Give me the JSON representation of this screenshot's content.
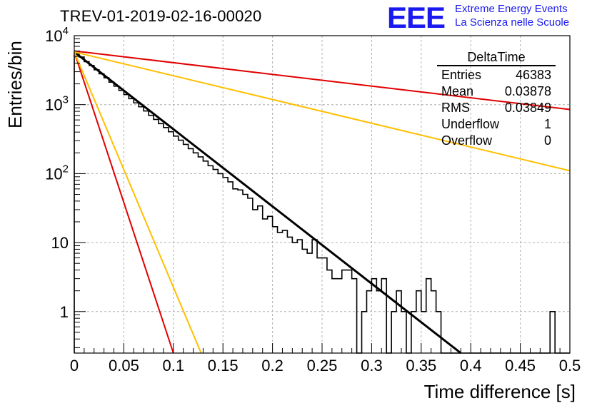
{
  "header": {
    "title": "TREV-01-2019-02-16-00020",
    "logo_text": "EEE",
    "logo_line1": "Extreme Energy Events",
    "logo_line2": "La Scienza nelle Scuole"
  },
  "stats_box": {
    "title": "DeltaTime",
    "rows": [
      {
        "label": "Entries",
        "value": "46383"
      },
      {
        "label": "Mean",
        "value": "0.03878"
      },
      {
        "label": "RMS",
        "value": "0.03849"
      },
      {
        "label": "Underflow",
        "value": "1"
      },
      {
        "label": "Overflow",
        "value": "0"
      }
    ]
  },
  "chart_data": {
    "type": "line",
    "title": "TREV-01-2019-02-16-00020",
    "xlabel": "Time difference [s]",
    "ylabel": "Entries/bin",
    "xlim": [
      0,
      0.5
    ],
    "ylim": [
      0.25,
      10000
    ],
    "y_scale": "log",
    "grid": true,
    "x_ticks": [
      "0",
      "0.05",
      "0.1",
      "0.15",
      "0.2",
      "0.25",
      "0.3",
      "0.35",
      "0.4",
      "0.45",
      "0.5"
    ],
    "y_ticks": [
      "1",
      "10",
      "10^2",
      "10^3",
      "10^4"
    ],
    "colors": {
      "fit": "#000000",
      "red": "#e00000",
      "orange": "#ffbf00",
      "hist": "#000000"
    },
    "histogram": {
      "name": "DeltaTime",
      "bin_width": 0.005,
      "x_start": 0.0,
      "values": [
        5600,
        4900,
        4200,
        3700,
        3200,
        2800,
        2450,
        2120,
        1850,
        1610,
        1400,
        1220,
        1060,
        930,
        810,
        700,
        610,
        530,
        465,
        405,
        350,
        305,
        265,
        230,
        200,
        175,
        152,
        130,
        115,
        100,
        88,
        76,
        60,
        58,
        50,
        44,
        30,
        34,
        22,
        24,
        17,
        14,
        15,
        12,
        10,
        11,
        8,
        7,
        11,
        6,
        6,
        4,
        3,
        3,
        4,
        4,
        3,
        0,
        1,
        2,
        3,
        2,
        3,
        0,
        1,
        2,
        1,
        0,
        1,
        2,
        1,
        3,
        2,
        1,
        0,
        0,
        0,
        0,
        0,
        0,
        0,
        0,
        0,
        0,
        0,
        0,
        0,
        0,
        0,
        0,
        0,
        0,
        0,
        0,
        0,
        0,
        1,
        0,
        0,
        0
      ]
    },
    "curves": [
      {
        "color": "black",
        "x": [
          0,
          0.39
        ],
        "y": [
          5800,
          0.25
        ]
      },
      {
        "color": "red",
        "x": [
          0,
          0.5
        ],
        "y": [
          6000,
          850
        ]
      },
      {
        "color": "orange",
        "x": [
          0,
          0.5
        ],
        "y": [
          5800,
          110
        ]
      },
      {
        "color": "red",
        "x": [
          0,
          0.1
        ],
        "y": [
          5800,
          0.25
        ]
      },
      {
        "color": "orange",
        "x": [
          0,
          0.128
        ],
        "y": [
          5800,
          0.25
        ]
      }
    ]
  }
}
